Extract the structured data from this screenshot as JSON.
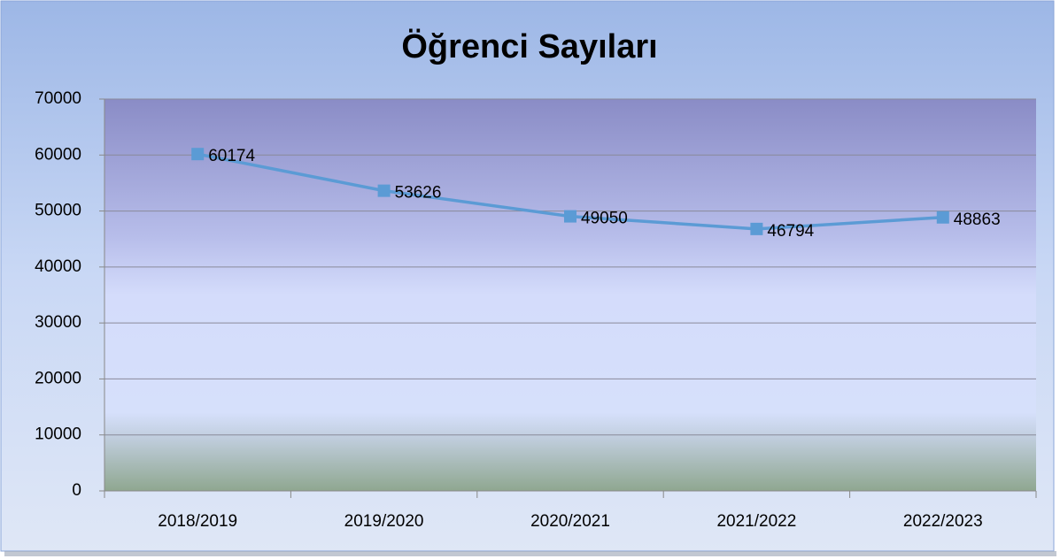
{
  "chart_data": {
    "type": "line",
    "title": "Öğrenci Sayıları",
    "categories": [
      "2018/2019",
      "2019/2020",
      "2020/2021",
      "2021/2022",
      "2022/2023"
    ],
    "values": [
      60174,
      53626,
      49050,
      46794,
      48863
    ],
    "color": "#5b9bd5",
    "ylim": [
      0,
      70000
    ],
    "yticks": [
      0,
      10000,
      20000,
      30000,
      40000,
      50000,
      60000,
      70000
    ],
    "grid": true
  }
}
